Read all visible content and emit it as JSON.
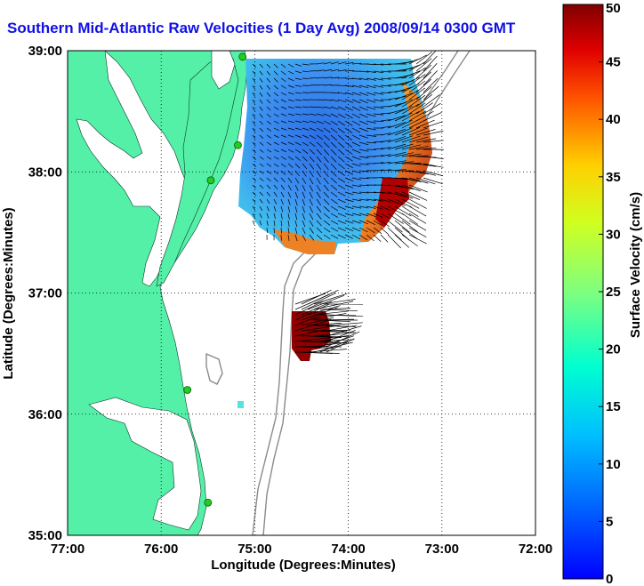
{
  "title": "Southern Mid-Atlantic Raw Velocities (1 Day Avg) 2008/09/14 0300 GMT",
  "colors": {
    "title": "#1010e6",
    "land": "#55f0a8",
    "ocean": "#ffffff",
    "bathymetry": "#8a8a8a",
    "grid": "#000000",
    "station": "#22cc22"
  },
  "chart_data": {
    "type": "heatmap",
    "subtype": "surface current velocity map with vector arrows",
    "title": "Southern Mid-Atlantic Raw Velocities (1 Day Avg) 2008/09/14 0300 GMT",
    "xlabel": "Longitude (Degrees:Minutes)",
    "ylabel": "Latitude (Degrees:Minutes)",
    "xlim": [
      -77,
      -72
    ],
    "ylim": [
      35,
      39
    ],
    "xticks": [
      {
        "value": -77,
        "label": "77:00"
      },
      {
        "value": -76,
        "label": "76:00"
      },
      {
        "value": -75,
        "label": "75:00"
      },
      {
        "value": -74,
        "label": "74:00"
      },
      {
        "value": -73,
        "label": "73:00"
      },
      {
        "value": -72,
        "label": "72:00"
      }
    ],
    "yticks": [
      {
        "value": 35,
        "label": "35:00"
      },
      {
        "value": 36,
        "label": "36:00"
      },
      {
        "value": 37,
        "label": "37:00"
      },
      {
        "value": 38,
        "label": "38:00"
      },
      {
        "value": 39,
        "label": "39:00"
      }
    ],
    "grid": "dotted",
    "colorbar": {
      "label": "Surface Velocity (cm/s)",
      "range": [
        0,
        50
      ],
      "ticks": [
        "0",
        "5",
        "10",
        "15",
        "20",
        "25",
        "30",
        "35",
        "40",
        "45",
        "50"
      ],
      "placement": "right",
      "colormap": "jet"
    },
    "stations": [
      {
        "lon": -75.13,
        "lat": 38.95
      },
      {
        "lon": -75.18,
        "lat": 38.22
      },
      {
        "lon": -75.47,
        "lat": 37.93
      },
      {
        "lon": -75.72,
        "lat": 36.2
      },
      {
        "lon": -75.5,
        "lat": 35.27
      }
    ]
  }
}
